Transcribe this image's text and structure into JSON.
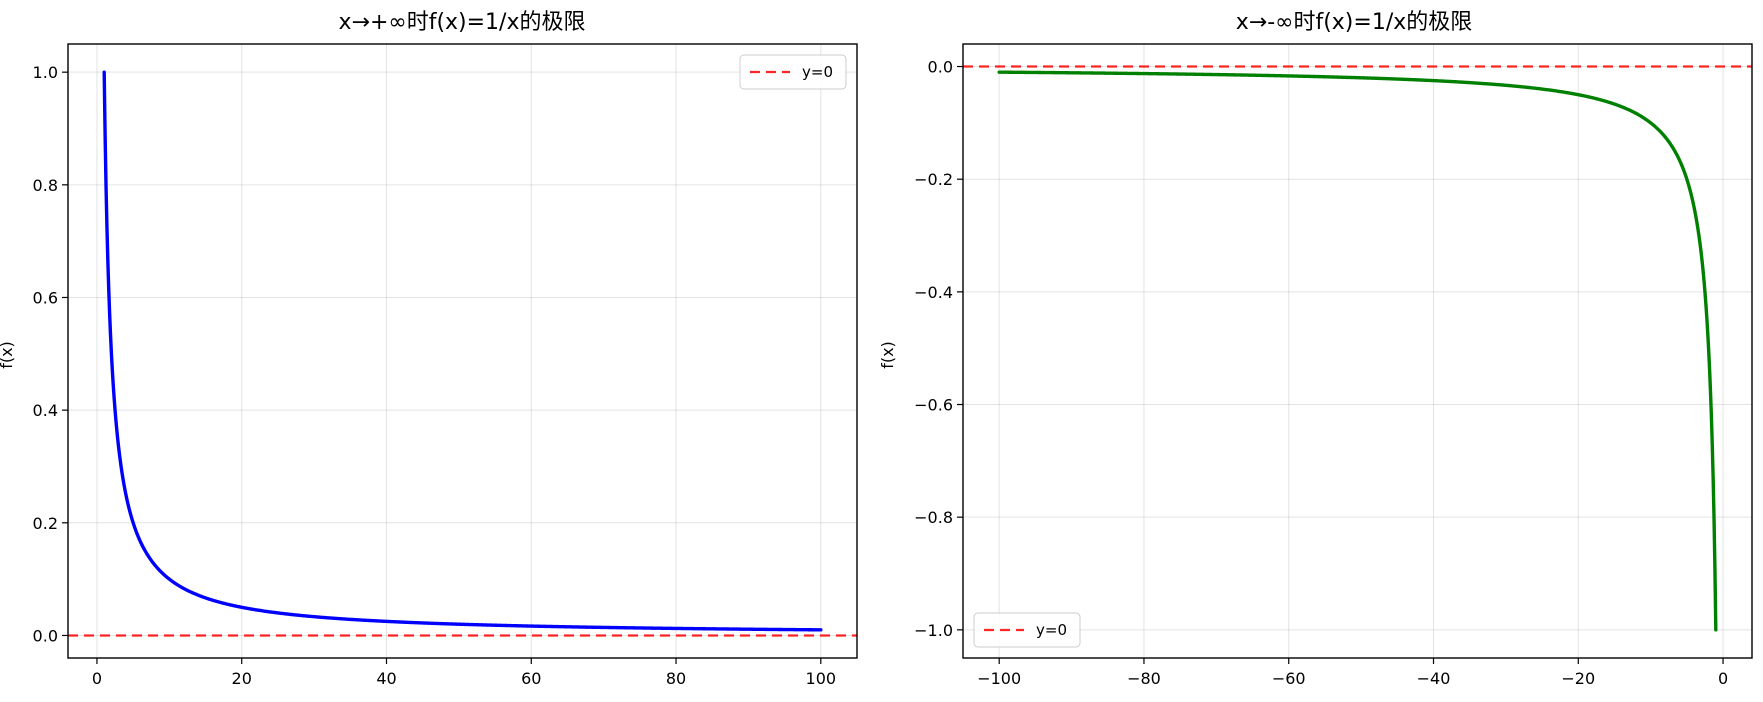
{
  "chart_data": [
    {
      "type": "line",
      "title": "x→+∞时f(x)=1/x的极限",
      "xlabel": "",
      "ylabel": "f(x)",
      "xlim": [
        -4,
        105
      ],
      "ylim": [
        -0.04,
        1.05
      ],
      "xticks": [
        0,
        20,
        40,
        60,
        80,
        100
      ],
      "yticks": [
        0.0,
        0.2,
        0.4,
        0.6,
        0.8,
        1.0
      ],
      "xtick_labels": [
        "0",
        "20",
        "40",
        "60",
        "80",
        "100"
      ],
      "ytick_labels": [
        "0.0",
        "0.2",
        "0.4",
        "0.6",
        "0.8",
        "1.0"
      ],
      "grid": true,
      "series": [
        {
          "function": "1/x",
          "x_range": [
            1,
            100
          ],
          "color": "#0000ff"
        }
      ],
      "reference_lines": [
        {
          "name": "y=0",
          "y": 0,
          "color": "#ff0000",
          "style": "dashed"
        }
      ],
      "legend": {
        "position": "upper-right",
        "entries": [
          "y=0"
        ]
      }
    },
    {
      "type": "line",
      "title": "x→-∞时f(x)=1/x的极限",
      "xlabel": "",
      "ylabel": "f(x)",
      "xlim": [
        -105,
        4
      ],
      "ylim": [
        -1.05,
        0.04
      ],
      "xticks": [
        -100,
        -80,
        -60,
        -40,
        -20,
        0
      ],
      "yticks": [
        0.0,
        -0.2,
        -0.4,
        -0.6,
        -0.8,
        -1.0
      ],
      "xtick_labels": [
        "−100",
        "−80",
        "−60",
        "−40",
        "−20",
        "0"
      ],
      "ytick_labels": [
        "0.0",
        "−0.2",
        "−0.4",
        "−0.6",
        "−0.8",
        "−1.0"
      ],
      "grid": true,
      "series": [
        {
          "function": "1/x",
          "x_range": [
            -100,
            -1
          ],
          "color": "#008000"
        }
      ],
      "reference_lines": [
        {
          "name": "y=0",
          "y": 0,
          "color": "#ff0000",
          "style": "dashed"
        }
      ],
      "legend": {
        "position": "lower-left",
        "entries": [
          "y=0"
        ]
      }
    }
  ]
}
